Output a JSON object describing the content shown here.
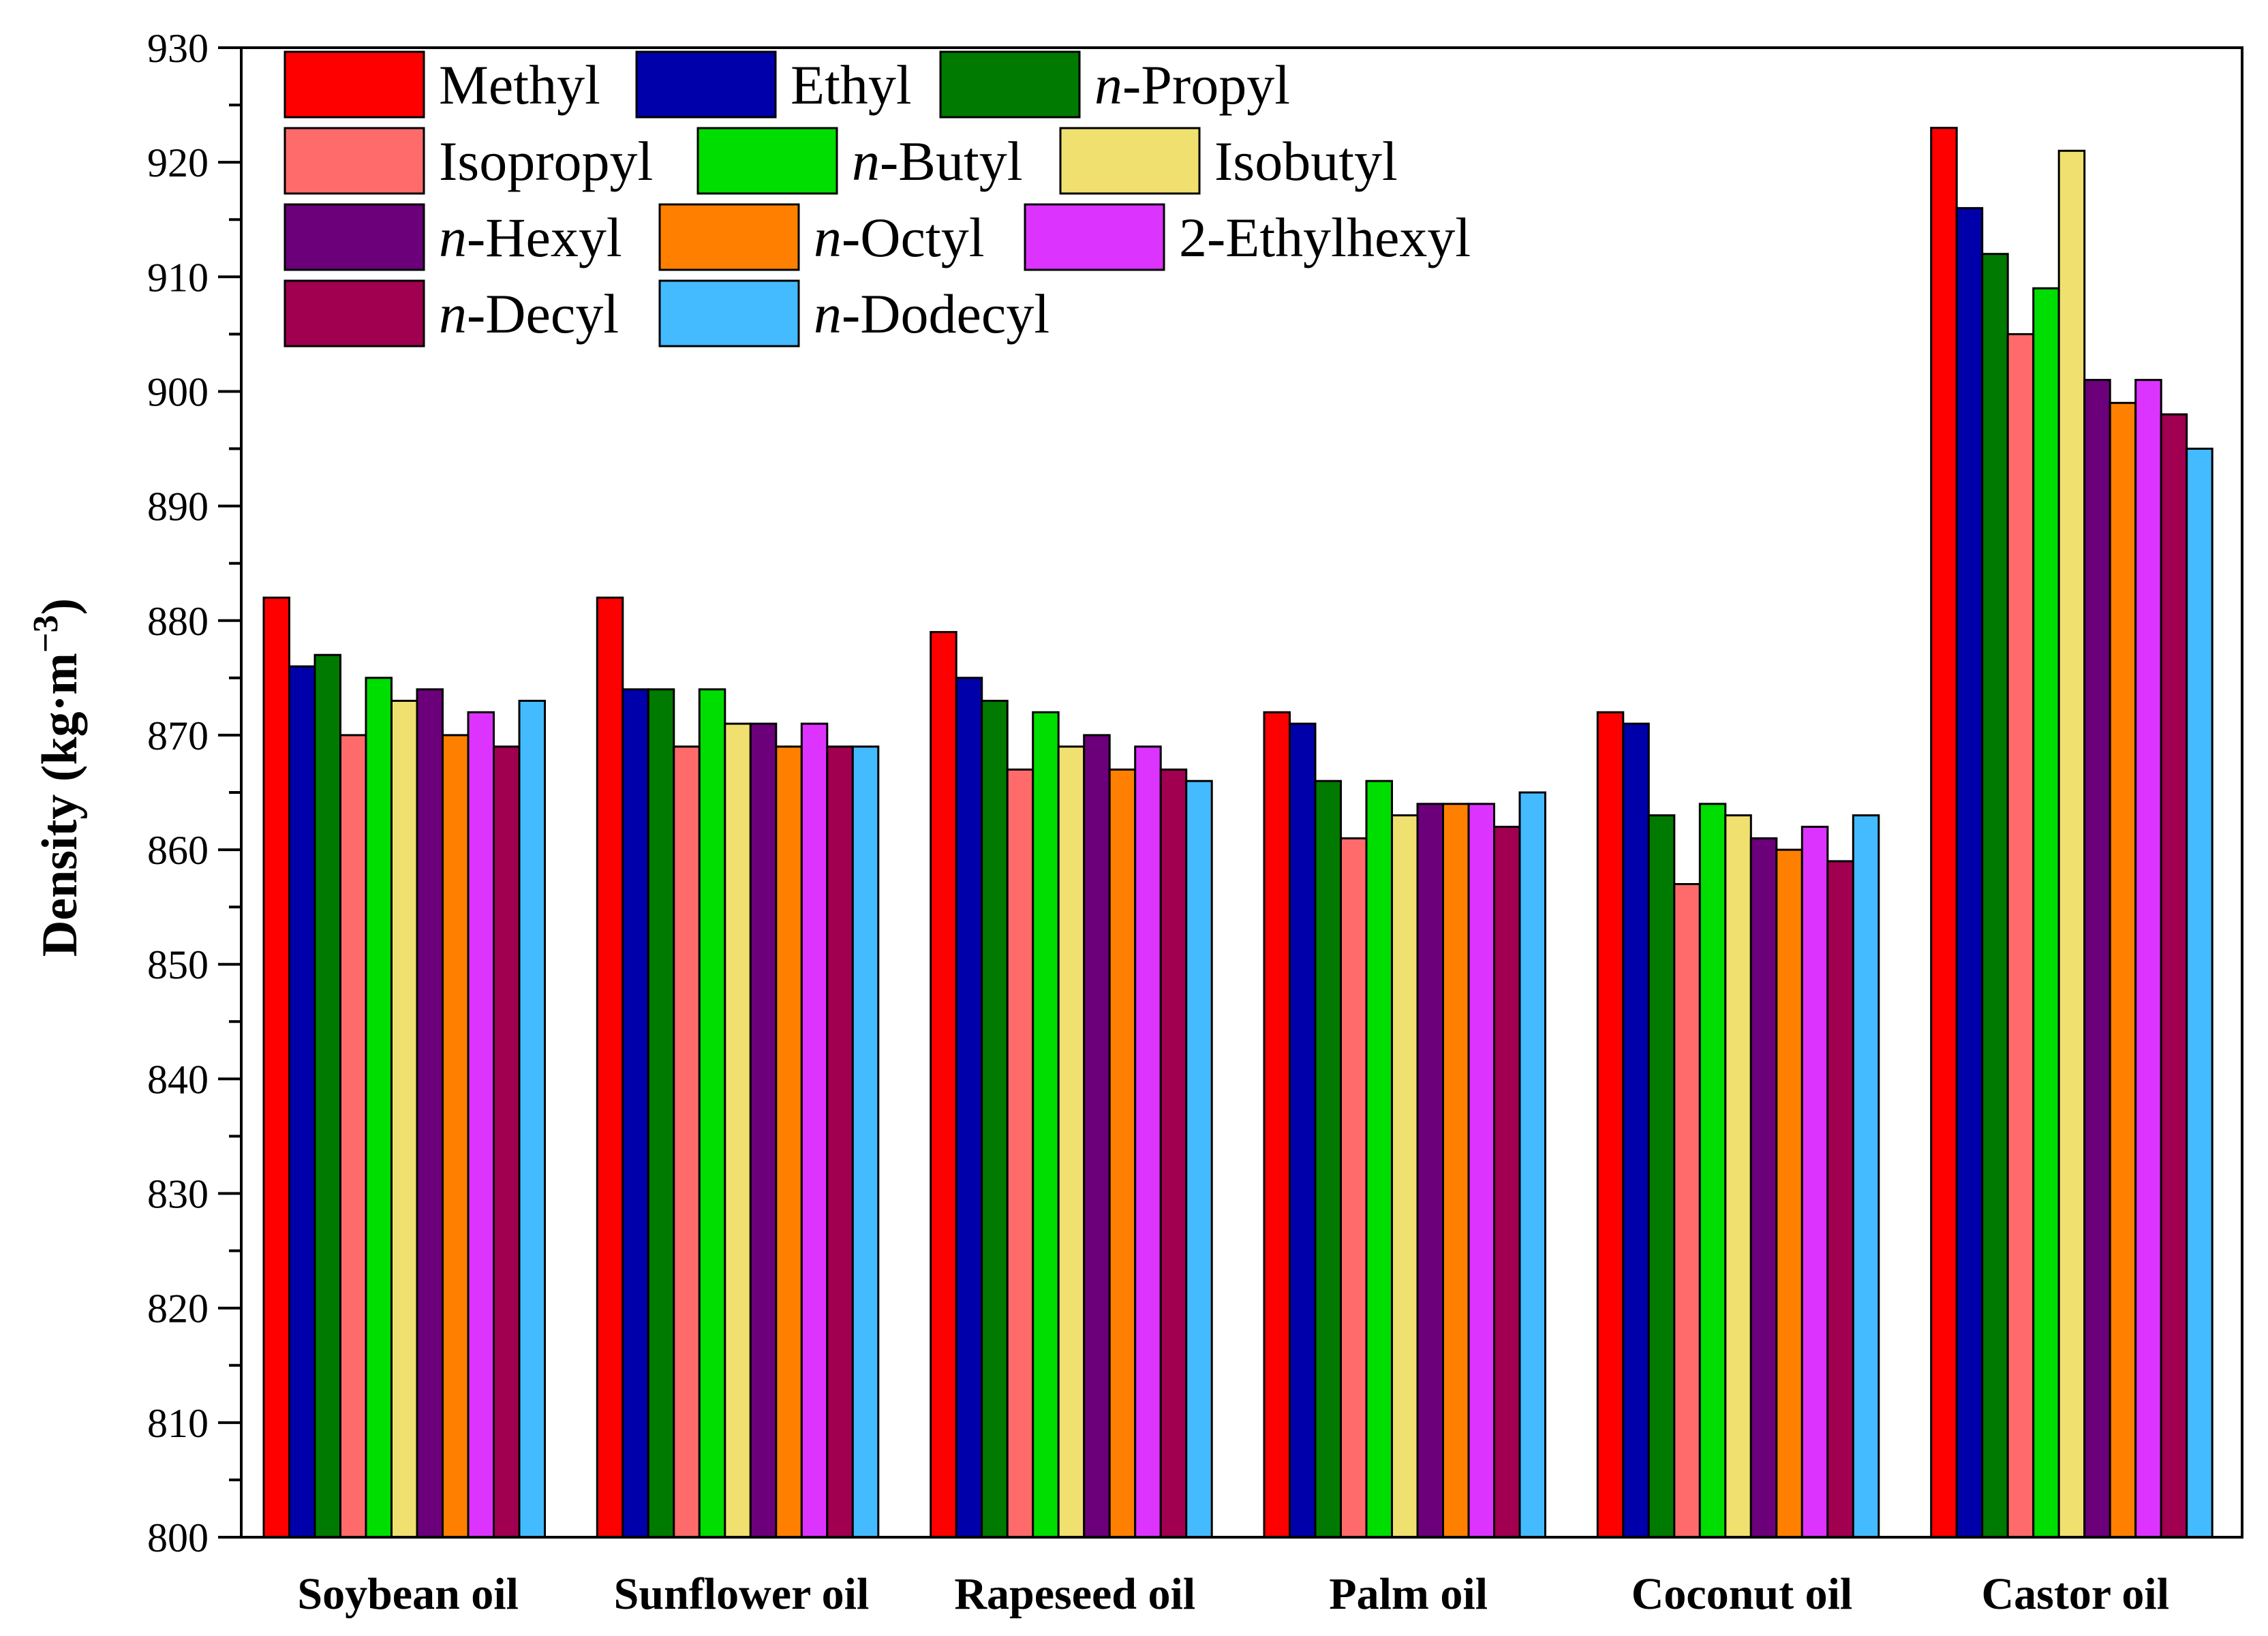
{
  "chart_data": {
    "type": "bar",
    "title": "",
    "xlabel": "",
    "ylabel": {
      "main": "Density (kg·m",
      "superscript": "−3",
      "close": ")"
    },
    "ylim": [
      800,
      930
    ],
    "yticks": [
      800,
      810,
      820,
      830,
      840,
      850,
      860,
      870,
      880,
      890,
      900,
      910,
      920,
      930
    ],
    "categories": [
      "Soybean oil",
      "Sunflower oil",
      "Rapeseed oil",
      "Palm oil",
      "Coconut oil",
      "Castor oil"
    ],
    "legend_position": "top-left",
    "series": [
      {
        "name": "Methyl",
        "prefix": "",
        "suffix": "Methyl",
        "color": "#FF0000",
        "values": [
          882,
          882,
          879,
          872,
          872,
          923
        ]
      },
      {
        "name": "Ethyl",
        "prefix": "",
        "suffix": "Ethyl",
        "color": "#0000AA",
        "values": [
          876,
          874,
          875,
          871,
          871,
          916
        ]
      },
      {
        "name": "n-Propyl",
        "prefix": "n",
        "suffix": "-Propyl",
        "color": "#007A00",
        "values": [
          877,
          874,
          873,
          866,
          863,
          912
        ]
      },
      {
        "name": "Isopropyl",
        "prefix": "",
        "suffix": "Isopropyl",
        "color": "#FF6B6B",
        "values": [
          870,
          869,
          867,
          861,
          857,
          905
        ]
      },
      {
        "name": "n-Butyl",
        "prefix": "n",
        "suffix": "-Butyl",
        "color": "#00DD00",
        "values": [
          875,
          874,
          872,
          866,
          864,
          909
        ]
      },
      {
        "name": "Isobutyl",
        "prefix": "",
        "suffix": "Isobutyl",
        "color": "#F0E070",
        "values": [
          873,
          871,
          869,
          863,
          863,
          921
        ]
      },
      {
        "name": "n-Hexyl",
        "prefix": "n",
        "suffix": "-Hexyl",
        "color": "#6B007A",
        "values": [
          874,
          871,
          870,
          864,
          861,
          901
        ]
      },
      {
        "name": "n-Octyl",
        "prefix": "n",
        "suffix": "-Octyl",
        "color": "#FF8000",
        "values": [
          870,
          869,
          867,
          864,
          860,
          899
        ]
      },
      {
        "name": "2-Ethylhexyl",
        "prefix": "",
        "suffix": "2-Ethylhexyl",
        "color": "#DD33FF",
        "values": [
          872,
          871,
          869,
          864,
          862,
          901
        ]
      },
      {
        "name": "n-Decyl",
        "prefix": "n",
        "suffix": "-Decyl",
        "color": "#A0004F",
        "values": [
          869,
          869,
          867,
          862,
          859,
          898
        ]
      },
      {
        "name": "n-Dodecyl",
        "prefix": "n",
        "suffix": "-Dodecyl",
        "color": "#44BBFF",
        "values": [
          873,
          869,
          866,
          865,
          863,
          895
        ]
      }
    ]
  }
}
